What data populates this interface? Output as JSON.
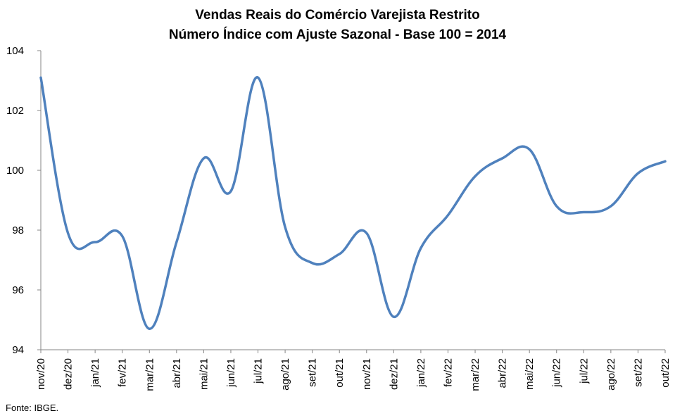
{
  "chart_data": {
    "type": "line",
    "title": "Vendas Reais do Comércio Varejista Restrito",
    "subtitle": "Número Índice com Ajuste Sazonal - Base 100 = 2014",
    "xlabel": "",
    "ylabel": "",
    "ylim": [
      94,
      104
    ],
    "yticks": [
      "94",
      "96",
      "98",
      "100",
      "102",
      "104"
    ],
    "grid": false,
    "legend": "none",
    "categories": [
      "nov/20",
      "dez/20",
      "jan/21",
      "fev/21",
      "mar/21",
      "abr/21",
      "mai/21",
      "jun/21",
      "jul/21",
      "ago/21",
      "set/21",
      "out/21",
      "nov/21",
      "dez/21",
      "jan/22",
      "fev/22",
      "mar/22",
      "abr/22",
      "mai/22",
      "jun/22",
      "jul/22",
      "ago/22",
      "set/22",
      "out/22"
    ],
    "series": [
      {
        "color": "#4f81bd",
        "values": [
          103.1,
          97.9,
          97.6,
          97.8,
          94.7,
          97.6,
          100.4,
          99.3,
          103.1,
          98.1,
          96.9,
          97.2,
          97.9,
          95.1,
          97.4,
          98.5,
          99.8,
          100.4,
          100.7,
          98.8,
          98.6,
          98.8,
          99.9,
          100.3
        ]
      }
    ]
  },
  "source": "Fonte: IBGE."
}
